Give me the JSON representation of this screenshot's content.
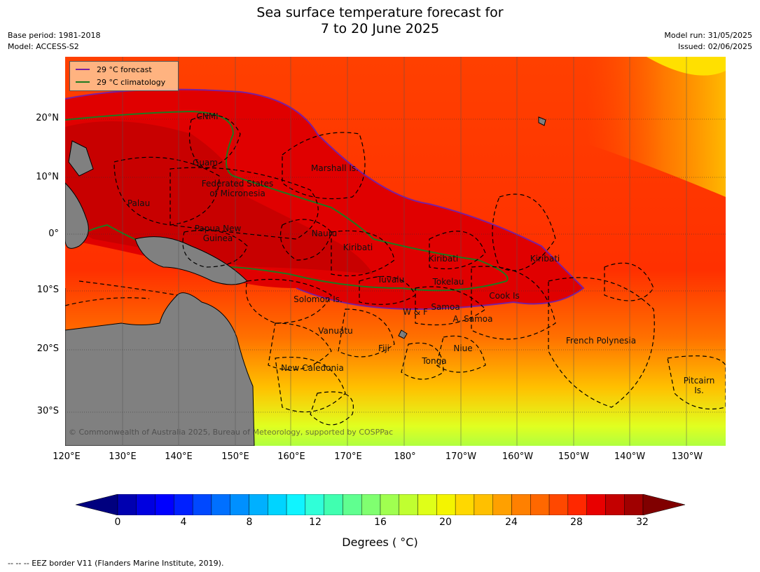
{
  "title_line1": "Sea surface temperature forecast for",
  "title_line2": "7 to 20 June 2025",
  "base_period": "Base period: 1981-2018",
  "model": "Model: ACCESS-S2",
  "model_run": "Model run: 31/05/2025",
  "issued": "Issued: 02/06/2025",
  "legend": {
    "forecast": {
      "label": "29 °C  forecast",
      "color": "#7a1fa0"
    },
    "climatology": {
      "label": "29 °C  climatology",
      "color": "#1f7a1f"
    }
  },
  "lat_labels": [
    "20°N",
    "10°N",
    "0°",
    "10°S",
    "20°S",
    "30°S"
  ],
  "lon_labels": [
    "120°E",
    "130°E",
    "140°E",
    "150°E",
    "160°E",
    "170°E",
    "180°",
    "170°W",
    "160°W",
    "150°W",
    "140°W",
    "130°W"
  ],
  "places": [
    "CNMI",
    "Guam",
    "Marshall Is.",
    "Federated States\nof Micronesia",
    "Palau",
    "Papua New\nGuinea",
    "Nauru",
    "Kiribati",
    "Kiribati",
    "Kiribati",
    "Tuvalu",
    "Tokelau",
    "Solomon Is.",
    "W & F",
    "Samoa",
    "A. Samoa",
    "Cook Is",
    "Vanuatu",
    "Fiji",
    "Niue",
    "Tonga",
    "New Caledonia",
    "French Polynesia",
    "Pitcairn\nIs."
  ],
  "copyright": "© Commonwealth of Australia 2025, Bureau of Meteorology, supported by COSPPac",
  "colorbar": {
    "ticks": [
      "0",
      "4",
      "8",
      "12",
      "16",
      "20",
      "24",
      "28",
      "32"
    ],
    "title": "Degrees ( °C)",
    "colors": [
      "#00007f",
      "#0000b0",
      "#0000e0",
      "#0000ff",
      "#0020ff",
      "#0048ff",
      "#0070ff",
      "#0090ff",
      "#00b0ff",
      "#00d4ff",
      "#10f4ff",
      "#30ffd8",
      "#40ffb0",
      "#60ff90",
      "#80ff70",
      "#a0ff50",
      "#c0ff30",
      "#dfff18",
      "#f4f400",
      "#ffd800",
      "#ffc000",
      "#ffa000",
      "#ff8000",
      "#ff6800",
      "#ff4800",
      "#ff2800",
      "#e80000",
      "#c40000",
      "#a00000",
      "#800000"
    ]
  },
  "footnote": "--  --  -- EEZ border V11 (Flanders Marine Institute, 2019)."
}
